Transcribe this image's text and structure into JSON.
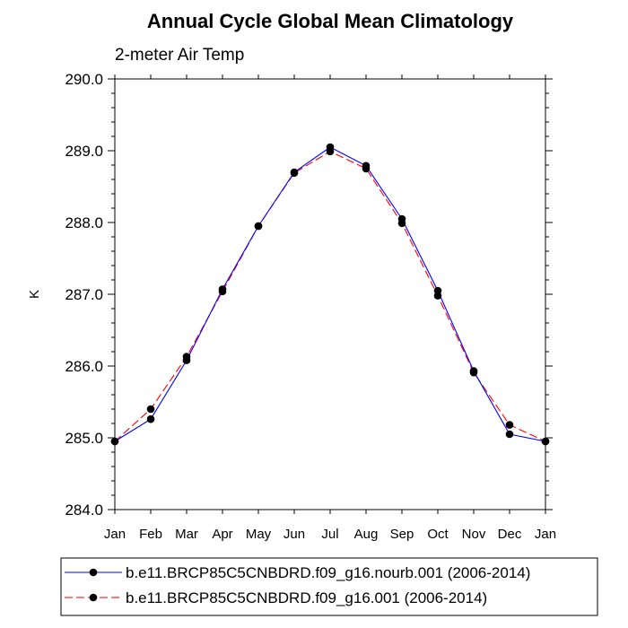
{
  "chart_data": {
    "type": "line",
    "title": "Annual Cycle Global Mean Climatology",
    "subtitle": "2-meter Air Temp",
    "xlabel": "",
    "ylabel": "K",
    "categories": [
      "Jan",
      "Feb",
      "Mar",
      "Apr",
      "May",
      "Jun",
      "Jul",
      "Aug",
      "Sep",
      "Oct",
      "Nov",
      "Dec",
      "Jan"
    ],
    "ylim": [
      284.0,
      290.0
    ],
    "yticks": [
      284.0,
      285.0,
      286.0,
      287.0,
      288.0,
      289.0,
      290.0
    ],
    "ytick_labels": [
      "284.0",
      "285.0",
      "286.0",
      "287.0",
      "288.0",
      "289.0",
      "290.0"
    ],
    "grid": false,
    "legend_position": "bottom",
    "series": [
      {
        "name": "b.e11.BRCP85C5CNBDRD.f09_g16.nourb.001 (2006-2014)",
        "color": "#0000ff",
        "dash": "solid",
        "values": [
          284.95,
          285.26,
          286.08,
          287.07,
          287.95,
          288.7,
          289.05,
          288.79,
          288.05,
          287.05,
          285.93,
          285.05,
          284.95
        ]
      },
      {
        "name": "b.e11.BRCP85C5CNBDRD.f09_g16.001 (2006-2014)",
        "color": "#ff0000",
        "dash": "dashed",
        "values": [
          284.95,
          285.4,
          286.13,
          287.04,
          287.95,
          288.69,
          288.99,
          288.75,
          287.99,
          286.98,
          285.91,
          285.18,
          284.95
        ]
      }
    ]
  }
}
